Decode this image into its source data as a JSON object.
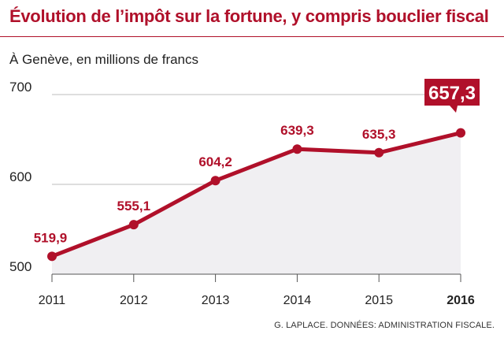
{
  "header": {
    "title": "Évolution de l’impôt sur la fortune, y compris bouclier fiscal",
    "subtitle": "À Genève, en millions de francs"
  },
  "footer": {
    "source": "G. LAPLACE. DONNÉES: ADMINISTRATION FISCALE."
  },
  "colors": {
    "accent": "#b0102a",
    "area_fill": "#f0eff2",
    "grid": "#bdbdbd"
  },
  "chart_data": {
    "type": "area",
    "categories": [
      "2011",
      "2012",
      "2013",
      "2014",
      "2015",
      "2016"
    ],
    "values": [
      519.9,
      555.1,
      604.2,
      639.3,
      635.3,
      657.3
    ],
    "value_labels": [
      "519,9",
      "555,1",
      "604,2",
      "639,3",
      "635,3",
      "657,3"
    ],
    "highlight_index": 5,
    "ylim": [
      500,
      700
    ],
    "yticks": [
      500,
      600,
      700
    ],
    "ytick_labels": [
      "500",
      "600",
      "700"
    ],
    "grid": true,
    "legend": "none"
  }
}
